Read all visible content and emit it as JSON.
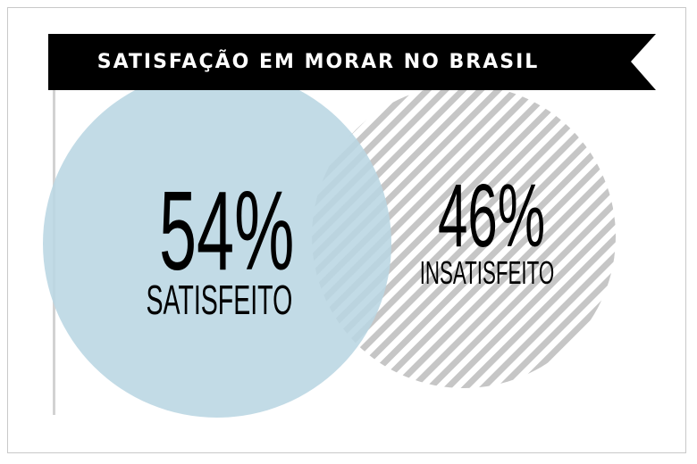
{
  "title": "SATISFAÇÃO EM MORAR NO BRASIL",
  "colors": {
    "satisfied": "#b9d6e3",
    "dissatisfied_stripe": "#c6c6c6",
    "banner": "#000000"
  },
  "chart_data": {
    "type": "venn",
    "title": "SATISFAÇÃO EM MORAR NO BRASIL",
    "series": [
      {
        "name": "SATISFEITO",
        "value": 54,
        "label": "54%"
      },
      {
        "name": "INSATISFEITO",
        "value": 46,
        "label": "46%"
      }
    ]
  }
}
